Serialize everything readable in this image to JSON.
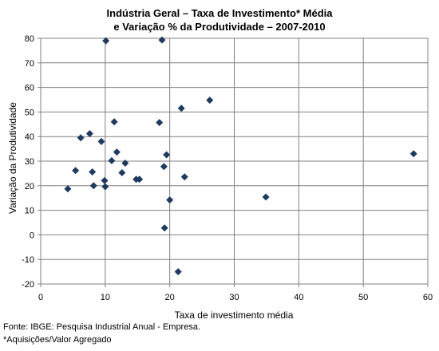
{
  "chart_data": {
    "type": "scatter",
    "title_lines": [
      "Indústria Geral – Taxa de Investimento* Média",
      "e Variação % da Produtividade – 2007-2010"
    ],
    "xlabel": "Taxa de investimento média",
    "ylabel": "Variação da Produtividade",
    "xlim": [
      0,
      60
    ],
    "ylim": [
      -20,
      80
    ],
    "x_ticks": [
      0,
      10,
      20,
      30,
      40,
      50,
      60
    ],
    "y_ticks": [
      -20,
      -10,
      0,
      10,
      20,
      30,
      40,
      50,
      60,
      70,
      80
    ],
    "grid": true,
    "legend": "none",
    "marker_color": "#1f3a5f",
    "points": [
      {
        "x": 10.1,
        "y": 79.0
      },
      {
        "x": 18.8,
        "y": 79.3
      },
      {
        "x": 26.2,
        "y": 54.8
      },
      {
        "x": 21.8,
        "y": 51.5
      },
      {
        "x": 11.4,
        "y": 46.0
      },
      {
        "x": 18.4,
        "y": 45.7
      },
      {
        "x": 7.6,
        "y": 41.2
      },
      {
        "x": 6.2,
        "y": 39.5
      },
      {
        "x": 9.4,
        "y": 38.0
      },
      {
        "x": 11.8,
        "y": 33.7
      },
      {
        "x": 19.5,
        "y": 32.6
      },
      {
        "x": 57.8,
        "y": 33.0
      },
      {
        "x": 11.0,
        "y": 30.2
      },
      {
        "x": 13.1,
        "y": 29.2
      },
      {
        "x": 19.1,
        "y": 27.8
      },
      {
        "x": 5.4,
        "y": 26.2
      },
      {
        "x": 8.0,
        "y": 25.6
      },
      {
        "x": 12.6,
        "y": 25.3
      },
      {
        "x": 22.3,
        "y": 23.6
      },
      {
        "x": 14.8,
        "y": 22.6
      },
      {
        "x": 15.3,
        "y": 22.6
      },
      {
        "x": 9.9,
        "y": 22.1
      },
      {
        "x": 8.2,
        "y": 20.0
      },
      {
        "x": 10.0,
        "y": 19.6
      },
      {
        "x": 4.2,
        "y": 18.7
      },
      {
        "x": 34.9,
        "y": 15.4
      },
      {
        "x": 20.0,
        "y": 14.2
      },
      {
        "x": 19.2,
        "y": 2.8
      },
      {
        "x": 21.3,
        "y": -15.0
      }
    ]
  },
  "footnotes": {
    "source": "Fonte: IBGE: Pesquisa Industrial Anual - Empresa.",
    "note": "*Aquisições/Valor Agregado"
  }
}
